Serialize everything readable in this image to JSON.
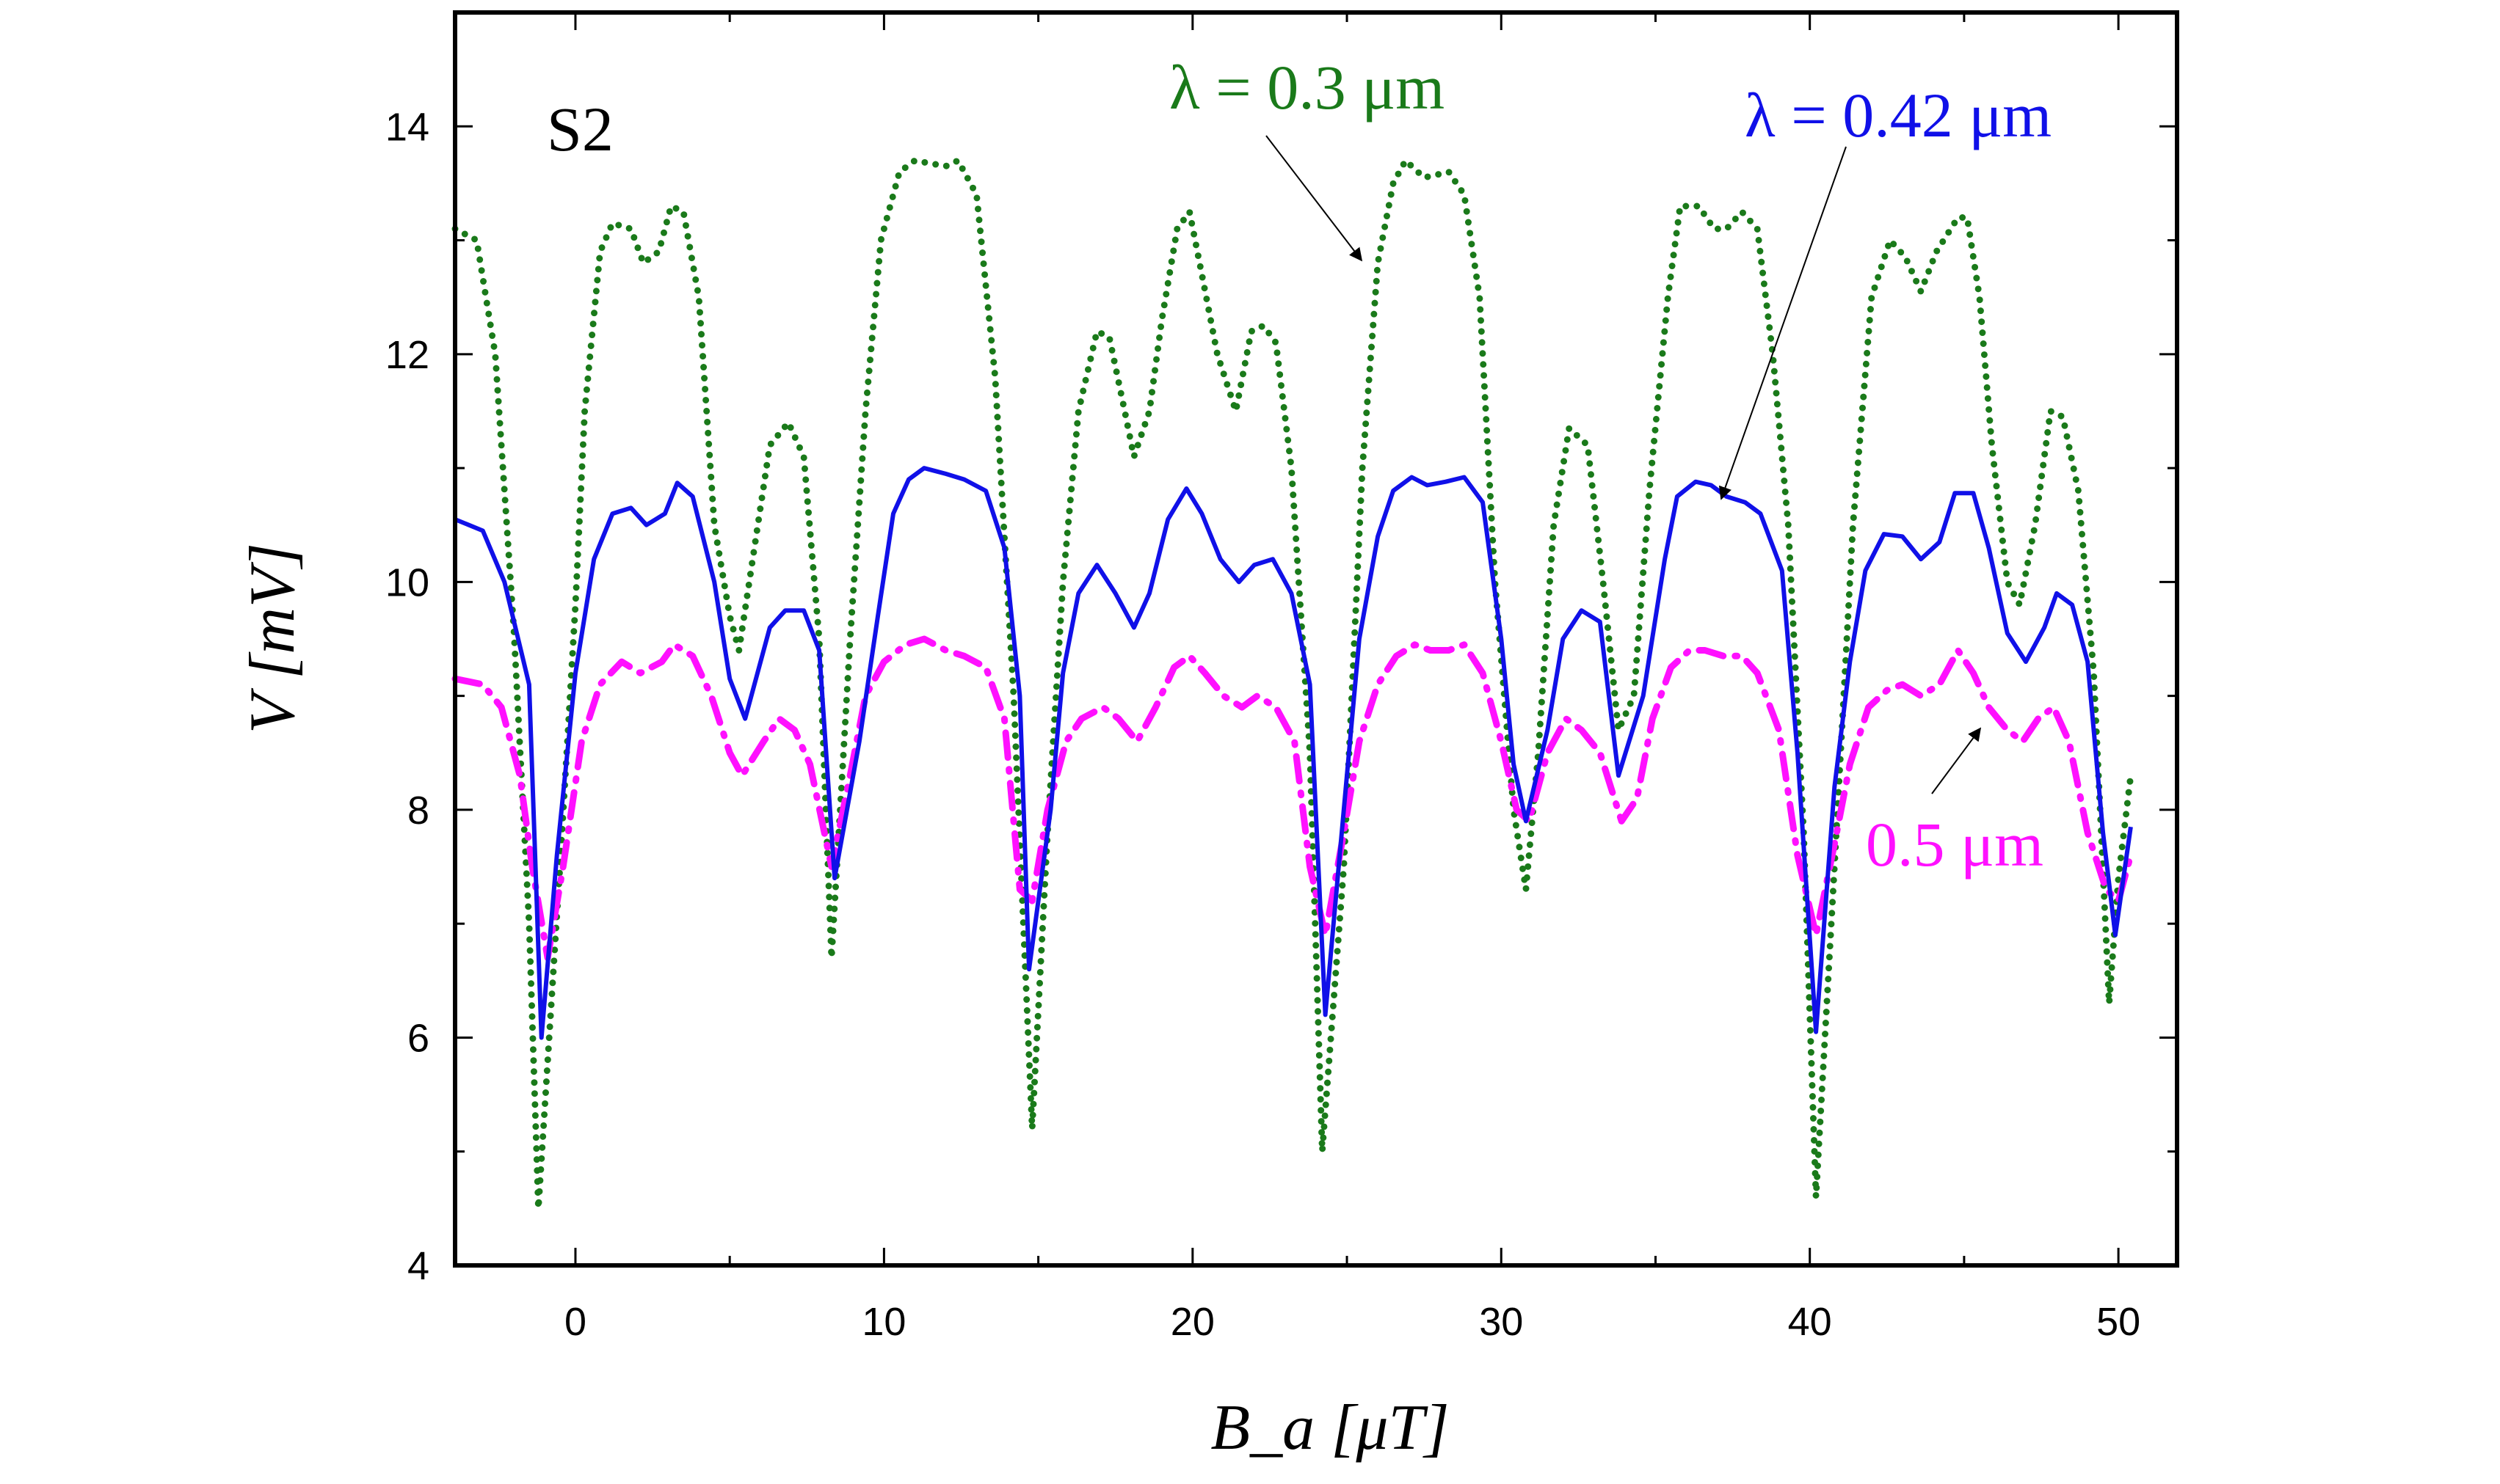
{
  "chart_data": {
    "type": "line",
    "xlabel": "B_a [μT]",
    "ylabel": "V [mV]",
    "xlim": [
      -3.9,
      51.9
    ],
    "ylim": [
      4,
      15
    ],
    "xticks": [
      0,
      10,
      20,
      30,
      40,
      50
    ],
    "yticks": [
      4,
      6,
      8,
      10,
      12,
      14
    ],
    "grid": false,
    "panel_label": "S2",
    "annotations": {
      "green": "λ = 0.3 μm",
      "blue": "λ = 0.42 μm",
      "magenta": "0.5 μm"
    },
    "series": [
      {
        "name": "λ = 0.3 μm",
        "color": "#1a7a1a",
        "style": "dotted",
        "x": [
          -3.9,
          -3.2,
          -2.6,
          -2.0,
          -1.5,
          -1.2,
          -0.5,
          0,
          0.3,
          0.8,
          1.2,
          1.8,
          2.2,
          2.7,
          3.1,
          3.5,
          4.0,
          4.5,
          5.0,
          5.3,
          5.8,
          6.3,
          6.9,
          7.4,
          7.9,
          8.3,
          8.9,
          9.4,
          9.9,
          10.5,
          11.0,
          12.0,
          12.4,
          13.0,
          13.6,
          14.2,
          14.8,
          15.3,
          15.8,
          16.3,
          16.9,
          17.3,
          17.8,
          18.1,
          18.6,
          19.0,
          19.5,
          19.9,
          20.3,
          20.8,
          21.4,
          21.9,
          22.3,
          22.7,
          23.2,
          23.8,
          24.2,
          24.9,
          25.5,
          26.0,
          26.5,
          26.9,
          27.5,
          28.3,
          28.8,
          29.3,
          29.8,
          30.4,
          30.8,
          31.2,
          31.7,
          32.2,
          32.8,
          33.3,
          33.8,
          34.3,
          34.8,
          35.4,
          35.8,
          36.4,
          36.9,
          37.3,
          37.8,
          38.3,
          38.8,
          39.3,
          39.8,
          40.2,
          40.8,
          41.4,
          42.0,
          42.6,
          43.1,
          43.6,
          44.1,
          44.8,
          45.1,
          45.5,
          45.9,
          46.4,
          46.8,
          47.3,
          47.8,
          48.2,
          48.7,
          49.2,
          49.7,
          50.0,
          50.4
        ],
        "y": [
          13.1,
          13.0,
          12.0,
          9.6,
          7.0,
          4.5,
          7.5,
          9.8,
          11.5,
          12.9,
          13.15,
          13.1,
          12.8,
          12.9,
          13.3,
          13.25,
          12.5,
          10.5,
          9.7,
          9.4,
          10.3,
          11.2,
          11.4,
          11.1,
          9.5,
          6.7,
          9.5,
          11.5,
          13.0,
          13.6,
          13.7,
          13.65,
          13.7,
          13.4,
          11.8,
          9.0,
          5.2,
          7.8,
          10.0,
          11.5,
          12.2,
          12.15,
          11.5,
          11.1,
          11.5,
          12.3,
          13.1,
          13.25,
          12.7,
          12.0,
          11.5,
          12.2,
          12.25,
          12.1,
          11.0,
          8.5,
          5.0,
          7.5,
          11.0,
          12.8,
          13.5,
          13.7,
          13.55,
          13.6,
          13.4,
          12.5,
          10.0,
          8.0,
          7.3,
          8.5,
          10.5,
          11.35,
          11.2,
          10.0,
          8.7,
          9.0,
          10.8,
          12.5,
          13.3,
          13.3,
          13.1,
          13.1,
          13.25,
          13.1,
          12.0,
          10.5,
          7.8,
          4.6,
          7.5,
          10.5,
          12.5,
          13.0,
          12.85,
          12.55,
          12.9,
          13.2,
          13.2,
          12.5,
          11.2,
          10.0,
          9.8,
          10.5,
          11.5,
          11.45,
          10.8,
          9.2,
          6.3,
          7.4,
          8.3
        ]
      },
      {
        "name": "λ = 0.42 μm",
        "color": "#1010e8",
        "style": "solid",
        "x": [
          -3.9,
          -3,
          -2.3,
          -1.5,
          -1.1,
          -0.6,
          0,
          0.6,
          1.2,
          1.8,
          2.3,
          2.9,
          3.3,
          3.8,
          4.5,
          5.0,
          5.5,
          6.3,
          6.8,
          7.4,
          7.9,
          8.4,
          9.2,
          9.8,
          10.3,
          10.8,
          11.3,
          12.0,
          12.6,
          13.3,
          13.9,
          14.4,
          14.7,
          15.4,
          15.8,
          16.3,
          16.9,
          17.5,
          18.1,
          18.6,
          19.2,
          19.8,
          20.3,
          20.9,
          21.5,
          22.0,
          22.6,
          23.2,
          23.8,
          24.3,
          24.9,
          25.4,
          26.0,
          26.5,
          27.1,
          27.6,
          28.2,
          28.8,
          29.4,
          30.0,
          30.4,
          30.8,
          31.5,
          32.0,
          32.6,
          33.2,
          33.8,
          34.6,
          35.3,
          35.7,
          36.3,
          36.8,
          37.3,
          37.9,
          38.4,
          39.1,
          39.6,
          40.2,
          40.8,
          41.3,
          41.8,
          42.4,
          43.0,
          43.6,
          44.2,
          44.7,
          45.3,
          45.8,
          46.4,
          47.0,
          47.6,
          48.0,
          48.5,
          49.0,
          49.5,
          49.9,
          50.4
        ],
        "y": [
          10.55,
          10.45,
          10.0,
          9.1,
          6.0,
          7.6,
          9.2,
          10.2,
          10.6,
          10.65,
          10.5,
          10.6,
          10.87,
          10.75,
          10.0,
          9.15,
          8.8,
          9.6,
          9.75,
          9.75,
          9.4,
          7.4,
          8.6,
          9.7,
          10.6,
          10.9,
          11.0,
          10.95,
          10.9,
          10.8,
          10.3,
          9.0,
          6.6,
          8.0,
          9.2,
          9.9,
          10.15,
          9.9,
          9.6,
          9.9,
          10.55,
          10.82,
          10.6,
          10.2,
          10.0,
          10.15,
          10.2,
          9.9,
          9.1,
          6.2,
          8.0,
          9.5,
          10.4,
          10.8,
          10.92,
          10.85,
          10.88,
          10.92,
          10.7,
          9.5,
          8.4,
          7.9,
          8.7,
          9.5,
          9.75,
          9.65,
          8.3,
          9.0,
          10.2,
          10.75,
          10.88,
          10.85,
          10.75,
          10.7,
          10.6,
          10.1,
          8.5,
          6.05,
          8.2,
          9.3,
          10.1,
          10.42,
          10.4,
          10.2,
          10.35,
          10.78,
          10.78,
          10.3,
          9.55,
          9.3,
          9.6,
          9.9,
          9.8,
          9.3,
          7.8,
          6.9,
          7.85
        ]
      },
      {
        "name": "0.5 μm",
        "color": "#ff10ff",
        "style": "dashdot",
        "x": [
          -3.9,
          -3,
          -2.4,
          -1.8,
          -1.4,
          -0.9,
          -0.4,
          0.2,
          0.8,
          1.5,
          2.1,
          2.8,
          3.2,
          3.8,
          4.4,
          5.0,
          5.4,
          6.1,
          6.6,
          7.1,
          7.6,
          8.3,
          8.9,
          9.4,
          10.0,
          10.7,
          11.3,
          12.0,
          12.6,
          13.3,
          13.9,
          14.4,
          14.8,
          15.3,
          15.9,
          16.4,
          17.1,
          17.6,
          18.2,
          18.8,
          19.4,
          19.9,
          20.4,
          21.0,
          21.6,
          22.1,
          22.7,
          23.3,
          23.8,
          24.3,
          24.9,
          25.4,
          26.0,
          26.6,
          27.2,
          27.7,
          28.3,
          28.8,
          29.4,
          30.0,
          30.5,
          30.9,
          31.5,
          32.1,
          32.6,
          33.2,
          33.9,
          34.4,
          34.9,
          35.5,
          36.1,
          36.6,
          37.2,
          37.8,
          38.3,
          39.0,
          39.6,
          40.2,
          40.8,
          41.3,
          41.9,
          42.5,
          43.0,
          43.6,
          44.2,
          44.8,
          45.3,
          45.8,
          46.4,
          46.9,
          47.4,
          47.9,
          48.4,
          49.0,
          49.6,
          50.0,
          50.4
        ],
        "y": [
          9.15,
          9.1,
          8.9,
          8.3,
          7.5,
          6.7,
          7.5,
          8.6,
          9.1,
          9.3,
          9.2,
          9.3,
          9.45,
          9.35,
          9.0,
          8.5,
          8.3,
          8.6,
          8.8,
          8.7,
          8.4,
          7.5,
          8.3,
          9.0,
          9.3,
          9.45,
          9.5,
          9.4,
          9.35,
          9.25,
          8.8,
          7.3,
          7.2,
          8.0,
          8.6,
          8.8,
          8.9,
          8.8,
          8.6,
          8.9,
          9.25,
          9.35,
          9.2,
          9.0,
          8.9,
          9.0,
          8.9,
          8.6,
          7.5,
          6.9,
          7.8,
          8.6,
          9.1,
          9.35,
          9.45,
          9.4,
          9.4,
          9.45,
          9.2,
          8.6,
          8.0,
          7.9,
          8.5,
          8.8,
          8.7,
          8.5,
          7.9,
          8.1,
          8.8,
          9.25,
          9.4,
          9.4,
          9.35,
          9.35,
          9.2,
          8.7,
          7.6,
          6.9,
          7.7,
          8.4,
          8.9,
          9.05,
          9.1,
          9.0,
          9.1,
          9.4,
          9.2,
          8.9,
          8.7,
          8.6,
          8.8,
          8.9,
          8.6,
          7.8,
          7.3,
          7.2,
          7.6
        ]
      }
    ]
  }
}
